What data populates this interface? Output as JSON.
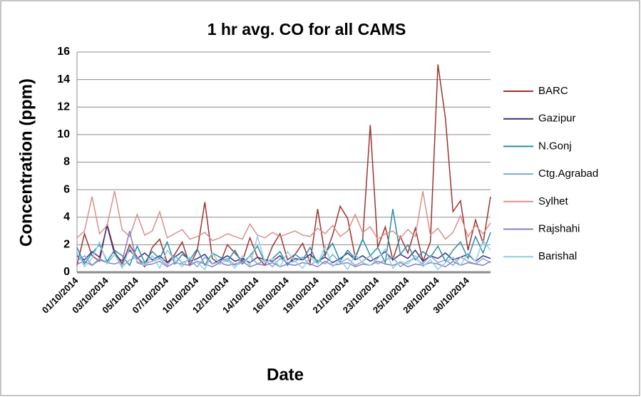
{
  "chart_data": {
    "type": "line",
    "title": "1 hr avg. CO for all CAMS",
    "y_label": "Concentration (ppm)",
    "x_label": "Date",
    "categories": [
      "01/10/2014",
      null,
      null,
      null,
      "03/10/2014",
      null,
      null,
      null,
      "05/10/2014",
      null,
      null,
      null,
      "07/10/2014",
      null,
      null,
      null,
      "10/10/2014",
      null,
      null,
      null,
      "12/10/2014",
      null,
      null,
      null,
      "14/10/2014",
      null,
      null,
      null,
      "16/10/2014",
      null,
      null,
      null,
      "19/10/2014",
      null,
      null,
      null,
      "21/10/2014",
      null,
      null,
      null,
      "23/10/2014",
      null,
      null,
      null,
      "25/10/2014",
      null,
      null,
      null,
      "28/10/2014",
      null,
      null,
      null,
      "30/10/2014",
      null,
      null,
      null
    ],
    "ylim": [
      0,
      16
    ],
    "yticks": [
      0,
      2,
      4,
      6,
      8,
      10,
      12,
      14,
      16
    ],
    "grid": true,
    "legend": "right",
    "series": [
      {
        "name": "BARC",
        "color": "#9b3431",
        "values": [
          0.5,
          2.8,
          1.2,
          0.8,
          3.5,
          1.5,
          0.6,
          2.0,
          1.1,
          0.4,
          1.8,
          2.4,
          0.7,
          1.3,
          2.2,
          0.5,
          1.6,
          5.1,
          1.0,
          0.6,
          2.0,
          1.4,
          0.8,
          2.5,
          1.1,
          0.5,
          1.9,
          2.8,
          0.9,
          1.3,
          2.1,
          0.7,
          4.6,
          1.2,
          2.7,
          4.8,
          3.9,
          1.1,
          2.4,
          10.7,
          1.8,
          3.3,
          0.9,
          2.6,
          1.4,
          3.2,
          0.8,
          2.2,
          15.1,
          11.2,
          4.4,
          5.2,
          1.6,
          3.8,
          2.1,
          5.5
        ]
      },
      {
        "name": "Gazipur",
        "color": "#3f2f7f",
        "values": [
          1.2,
          0.9,
          1.5,
          1.1,
          3.4,
          1.3,
          0.8,
          1.6,
          1.0,
          1.4,
          0.9,
          1.2,
          0.7,
          1.1,
          1.5,
          0.8,
          1.0,
          1.3,
          0.6,
          0.9,
          1.2,
          0.8,
          1.0,
          0.7,
          1.1,
          0.9,
          0.8,
          1.2,
          0.6,
          1.0,
          0.9,
          1.3,
          0.8,
          1.1,
          0.7,
          1.0,
          1.4,
          0.9,
          1.2,
          0.8,
          1.1,
          1.5,
          0.9,
          1.3,
          1.0,
          1.6,
          0.8,
          1.2,
          1.0,
          1.4,
          0.9,
          1.1,
          1.3,
          0.8,
          1.2,
          1.0
        ]
      },
      {
        "name": "N.Gonj",
        "color": "#2b8ca8",
        "values": [
          1.8,
          0.6,
          1.4,
          2.0,
          0.8,
          1.6,
          1.2,
          0.5,
          1.9,
          0.7,
          1.5,
          1.0,
          2.2,
          0.6,
          1.3,
          0.9,
          1.7,
          0.5,
          1.4,
          1.1,
          0.8,
          1.6,
          0.6,
          1.2,
          1.9,
          0.7,
          1.0,
          1.5,
          0.5,
          1.3,
          0.9,
          1.8,
          0.6,
          1.4,
          2.1,
          0.8,
          1.6,
          1.0,
          2.4,
          1.2,
          1.8,
          0.7,
          4.6,
          1.3,
          2.0,
          0.9,
          1.5,
          1.1,
          1.9,
          0.8,
          1.6,
          2.2,
          1.0,
          2.6,
          1.4,
          2.9
        ]
      },
      {
        "name": "Ctg.Agrabad",
        "color": "#7ea9d4",
        "values": [
          0.8,
          1.2,
          0.5,
          1.0,
          0.7,
          1.3,
          0.4,
          0.9,
          1.1,
          0.6,
          0.8,
          1.0,
          0.5,
          1.2,
          0.7,
          0.9,
          0.4,
          1.1,
          0.6,
          0.8,
          1.0,
          0.5,
          0.7,
          1.2,
          0.6,
          0.9,
          0.4,
          1.0,
          0.7,
          0.8,
          1.1,
          0.5,
          0.9,
          0.6,
          1.3,
          0.7,
          1.0,
          0.5,
          0.8,
          1.2,
          0.6,
          0.9,
          1.1,
          0.4,
          0.8,
          1.0,
          0.6,
          1.2,
          0.7,
          0.9,
          0.5,
          1.1,
          0.8,
          0.6,
          1.0,
          0.7
        ]
      },
      {
        "name": "Sylhet",
        "color": "#d9908d",
        "values": [
          2.5,
          3.0,
          5.5,
          2.8,
          3.4,
          5.9,
          3.1,
          2.6,
          4.2,
          2.7,
          3.0,
          4.4,
          2.5,
          2.8,
          3.1,
          2.4,
          2.6,
          2.9,
          2.3,
          2.5,
          2.8,
          2.6,
          2.4,
          3.5,
          2.7,
          2.5,
          2.9,
          2.6,
          2.8,
          3.0,
          2.7,
          2.6,
          3.2,
          2.8,
          3.4,
          2.6,
          3.0,
          4.2,
          2.9,
          3.3,
          2.4,
          2.8,
          3.0,
          2.5,
          3.1,
          2.6,
          5.9,
          2.7,
          3.2,
          2.4,
          2.9,
          4.1,
          2.6,
          3.4,
          2.8,
          3.6
        ]
      },
      {
        "name": "Rajshahi",
        "color": "#8e7cc3",
        "values": [
          0.6,
          0.8,
          0.5,
          0.9,
          0.7,
          0.6,
          0.8,
          3.0,
          0.7,
          0.5,
          0.6,
          0.8,
          0.4,
          0.7,
          0.6,
          0.5,
          0.8,
          0.6,
          0.4,
          0.7,
          0.5,
          0.6,
          0.8,
          0.4,
          0.6,
          0.5,
          0.7,
          0.4,
          0.6,
          0.5,
          0.7,
          0.6,
          0.4,
          0.8,
          0.5,
          0.6,
          0.7,
          0.4,
          0.6,
          0.5,
          0.8,
          0.6,
          0.5,
          0.7,
          0.4,
          0.6,
          0.5,
          0.7,
          0.6,
          0.4,
          0.8,
          0.5,
          0.7,
          0.6,
          0.5,
          0.8
        ]
      },
      {
        "name": "Barishal",
        "color": "#8fd0e4",
        "values": [
          1.5,
          0.4,
          1.0,
          2.2,
          0.6,
          1.3,
          0.3,
          1.8,
          0.8,
          0.5,
          1.2,
          0.3,
          1.6,
          0.9,
          0.4,
          1.1,
          0.7,
          0.2,
          1.4,
          0.6,
          0.9,
          0.3,
          1.2,
          0.5,
          2.6,
          0.7,
          1.0,
          0.4,
          1.5,
          0.8,
          0.3,
          1.1,
          0.6,
          1.9,
          0.4,
          0.9,
          0.2,
          1.3,
          0.7,
          0.5,
          1.0,
          1.7,
          0.3,
          0.8,
          0.6,
          1.2,
          0.4,
          0.9,
          0.2,
          0.7,
          1.1,
          0.5,
          1.4,
          0.8,
          2.3,
          1.6
        ]
      }
    ]
  }
}
